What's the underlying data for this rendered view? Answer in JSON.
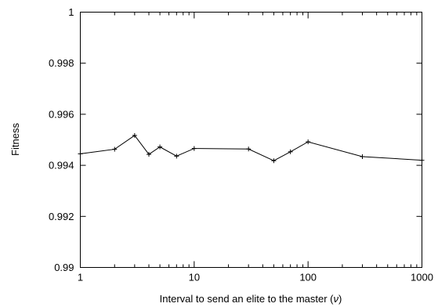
{
  "chart_data": {
    "type": "line",
    "title": "",
    "xlabel_prefix": "Interval to send an elite to the master (",
    "xlabel_symbol": "ν",
    "xlabel_suffix": ")",
    "ylabel": "Fitness",
    "xscale": "log",
    "xlim": [
      1,
      1000
    ],
    "ylim": [
      0.99,
      1.0
    ],
    "grid": false,
    "legend": "none",
    "xticks": [
      1,
      10,
      100,
      1000
    ],
    "xtick_labels": [
      "1",
      "10",
      "100",
      "1000"
    ],
    "yticks": [
      0.99,
      0.992,
      0.994,
      0.996,
      0.998,
      1.0
    ],
    "ytick_labels": [
      "0.99",
      "0.992",
      "0.994",
      "0.996",
      "0.998",
      "1"
    ],
    "series": [
      {
        "x": [
          1,
          2,
          3,
          4,
          5,
          7,
          10,
          30,
          50,
          70,
          100,
          300,
          1000
        ],
        "y": [
          0.99445,
          0.99463,
          0.99517,
          0.99443,
          0.99472,
          0.99436,
          0.99466,
          0.99464,
          0.99418,
          0.99453,
          0.99492,
          0.99434,
          0.9942
        ],
        "color": "#000000",
        "marker": "plus"
      }
    ]
  }
}
